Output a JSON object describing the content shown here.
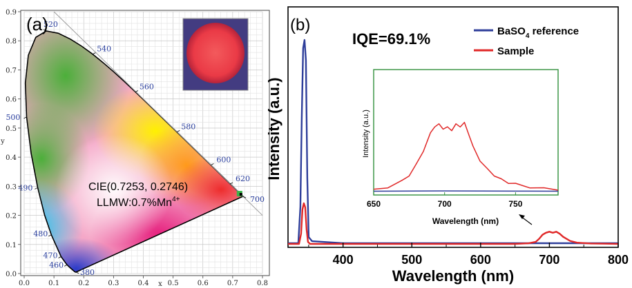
{
  "chart_data": [
    {
      "type": "cie-chromaticity",
      "panel_label": "(a)",
      "xlabel": "x",
      "ylabel": "y",
      "xlim": [
        0.0,
        0.8
      ],
      "ylim": [
        0.0,
        0.9
      ],
      "x_ticks": [
        "0.0",
        "0.1",
        "0.2",
        "0.3",
        "0.4",
        "0.5",
        "0.6",
        "0.7",
        "0.8"
      ],
      "y_ticks": [
        "0.0",
        "0.1",
        "0.2",
        "0.3",
        "0.4",
        "0.5",
        "0.6",
        "0.7",
        "0.8",
        "0.9"
      ],
      "grid": true,
      "locus_labels": [
        {
          "text": "380",
          "x": 0.174,
          "y": 0.005
        },
        {
          "text": "460",
          "x": 0.144,
          "y": 0.03
        },
        {
          "text": "470",
          "x": 0.124,
          "y": 0.058
        },
        {
          "text": "480",
          "x": 0.091,
          "y": 0.133
        },
        {
          "text": "490",
          "x": 0.045,
          "y": 0.295
        },
        {
          "text": "500",
          "x": 0.008,
          "y": 0.538
        },
        {
          "text": "520",
          "x": 0.074,
          "y": 0.834
        },
        {
          "text": "540",
          "x": 0.23,
          "y": 0.754
        },
        {
          "text": "560",
          "x": 0.373,
          "y": 0.624
        },
        {
          "text": "580",
          "x": 0.513,
          "y": 0.487
        },
        {
          "text": "600",
          "x": 0.627,
          "y": 0.373
        },
        {
          "text": "620",
          "x": 0.691,
          "y": 0.308
        },
        {
          "text": "700",
          "x": 0.735,
          "y": 0.265
        }
      ],
      "point": {
        "x": 0.7253,
        "y": 0.2746
      },
      "annotation_line1": "CIE(0.7253, 0.2746)",
      "annotation_line2": "LLMW:0.7%Mn",
      "annotation_sup": "4+",
      "colors": {
        "locus": "#000000",
        "grid": "#cccccc",
        "label": "#2a3f9e",
        "point": "#3bb54a",
        "inset_glow": "#f0444c"
      }
    },
    {
      "type": "line",
      "panel_label": "(b)",
      "annotation": "IQE=69.1%",
      "xlabel": "Wavelength (nm)",
      "ylabel": "Intensity (a.u.)",
      "xlim": [
        320,
        800
      ],
      "x_ticks": [
        "400",
        "500",
        "600",
        "700",
        "800"
      ],
      "legend": [
        {
          "main": "BaSO",
          "sub": "4",
          "rest": " reference",
          "color": "#2e3e9a"
        },
        {
          "main": "Sample",
          "sub": "",
          "rest": "",
          "color": "#e02828"
        }
      ],
      "legend_position": "top-right",
      "series": [
        {
          "name": "BaSO4 reference",
          "color": "#2e3e9a",
          "x": [
            320,
            335,
            338,
            340,
            342,
            344,
            346,
            348,
            350,
            355,
            400,
            500,
            600,
            650,
            680,
            690,
            700,
            710,
            720,
            740,
            800
          ],
          "y": [
            0.0,
            0.0,
            0.18,
            0.62,
            0.96,
            1.0,
            0.9,
            0.32,
            0.03,
            0.01,
            0.0,
            0.0,
            0.0,
            0.0,
            0.0,
            0.0,
            0.0,
            0.0,
            0.0,
            0.0,
            0.0
          ]
        },
        {
          "name": "Sample",
          "color": "#e02828",
          "x": [
            320,
            336,
            339,
            341,
            343,
            345,
            347,
            349,
            352,
            400,
            500,
            600,
            650,
            670,
            680,
            685,
            690,
            695,
            700,
            705,
            710,
            715,
            720,
            730,
            740,
            760,
            780,
            800
          ],
          "y": [
            0.0,
            0.0,
            0.05,
            0.17,
            0.2,
            0.18,
            0.07,
            0.01,
            0.0,
            0.0,
            0.0,
            0.0,
            0.0,
            0.003,
            0.01,
            0.025,
            0.045,
            0.055,
            0.06,
            0.055,
            0.06,
            0.05,
            0.035,
            0.015,
            0.006,
            0.002,
            0.001,
            0.0
          ]
        }
      ],
      "inset": {
        "xlabel": "Wavelength (nm)",
        "ylabel": "Intensity (a.u.)",
        "xlim": [
          650,
          780
        ],
        "x_ticks": [
          "650",
          "700",
          "750"
        ],
        "series": [
          {
            "name": "Sample",
            "color": "#e02828",
            "x": [
              650,
              660,
              670,
              675,
              680,
              685,
              690,
              693,
              696,
              699,
              702,
              705,
              708,
              711,
              714,
              717,
              720,
              725,
              730,
              735,
              740,
              745,
              750,
              760,
              770,
              780
            ],
            "y": [
              0.02,
              0.06,
              0.14,
              0.22,
              0.36,
              0.55,
              0.78,
              0.88,
              0.9,
              0.85,
              0.86,
              0.83,
              0.9,
              0.88,
              0.92,
              0.78,
              0.6,
              0.42,
              0.3,
              0.22,
              0.16,
              0.12,
              0.1,
              0.06,
              0.04,
              0.03
            ]
          },
          {
            "name": "BaSO4 reference",
            "color": "#2e3e9a",
            "x": [
              650,
              700,
              750,
              780
            ],
            "y": [
              0.005,
              0.008,
              0.006,
              0.005
            ]
          }
        ]
      }
    }
  ]
}
